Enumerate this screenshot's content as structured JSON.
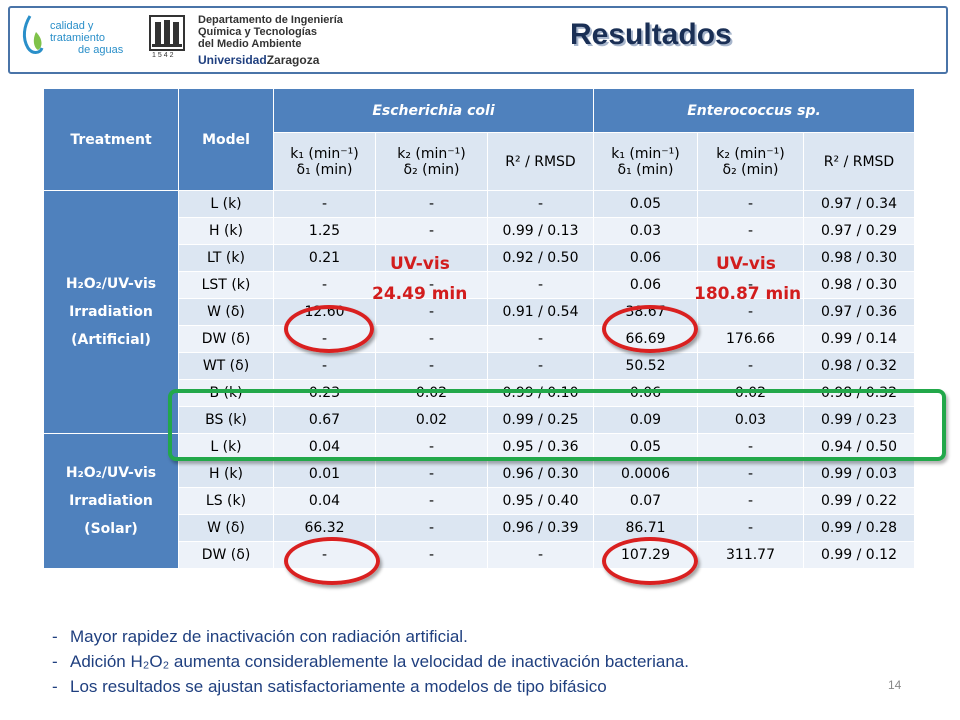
{
  "header": {
    "logo1_line1": "calidad y tratamiento",
    "logo1_line2": "de aguas",
    "dept_line1": "Departamento de Ingeniería",
    "dept_line2": "Química y Tecnologías",
    "dept_line3": "del Medio Ambiente",
    "univ_bold": "Universidad",
    "univ_rest": "Zaragoza",
    "crest_year": "1542",
    "title": "Resultados"
  },
  "table": {
    "h_treatment": "Treatment",
    "h_model": "Model",
    "h_ecoli": "Escherichia coli",
    "h_entero": "Enterococcus sp.",
    "sub": {
      "k1": "k₁ (min⁻¹)",
      "d1": "δ₁ (min)",
      "k2": "k₂ (min⁻¹)",
      "d2": "δ₂ (min)",
      "r2": "R² / RMSD"
    },
    "group_artificial": [
      "H₂O₂/UV-vis",
      "Irradiation",
      "(Artificial)"
    ],
    "group_solar": [
      "H₂O₂/UV-vis",
      "Irradiation",
      "(Solar)"
    ],
    "rows": [
      [
        "L (k)",
        "-",
        "-",
        "-",
        "0.05",
        "-",
        "0.97 / 0.34"
      ],
      [
        "H (k)",
        "1.25",
        "-",
        "0.99 / 0.13",
        "0.03",
        "-",
        "0.97 / 0.29"
      ],
      [
        "LT (k)",
        "0.21",
        "",
        "0.92 / 0.50",
        "0.06",
        "",
        "0.98 / 0.30"
      ],
      [
        "LST (k)",
        "-",
        "-",
        "-",
        "0.06",
        "-",
        "0.98 / 0.30"
      ],
      [
        "W (δ)",
        "12.60",
        "-",
        "0.91 / 0.54",
        "38.67",
        "-",
        "0.97 / 0.36"
      ],
      [
        "DW (δ)",
        "-",
        "-",
        "-",
        "66.69",
        "176.66",
        "0.99 / 0.14"
      ],
      [
        "WT (δ)",
        "-",
        "-",
        "-",
        "50.52",
        "-",
        "0.98 / 0.32"
      ],
      [
        "B (k)",
        "0.23",
        "0.02",
        "0.99 / 0.10",
        "0.06",
        "0.02",
        "0.98 / 0.32"
      ],
      [
        "BS (k)",
        "0.67",
        "0.02",
        "0.99 / 0.25",
        "0.09",
        "0.03",
        "0.99 / 0.23"
      ],
      [
        "L (k)",
        "0.04",
        "-",
        "0.95 / 0.36",
        "0.05",
        "-",
        "0.94 / 0.50"
      ],
      [
        "H (k)",
        "0.01",
        "-",
        "0.96 / 0.30",
        "0.0006",
        "-",
        "0.99 / 0.03"
      ],
      [
        "LS (k)",
        "0.04",
        "-",
        "0.95 / 0.40",
        "0.07",
        "-",
        "0.99 / 0.22"
      ],
      [
        "W (δ)",
        "66.32",
        "-",
        "0.96 / 0.39",
        "86.71",
        "-",
        "0.99 / 0.28"
      ],
      [
        "DW (δ)",
        "-",
        "-",
        "-",
        "107.29",
        "311.77",
        "0.99 / 0.12"
      ]
    ]
  },
  "annotations": {
    "uvvis_left_1": "UV-vis",
    "uvvis_left_2": "24.49 min",
    "uvvis_right_1": "UV-vis",
    "uvvis_right_2": "180.87 min",
    "color_red": "#d21d1d",
    "color_green": "#22a84a"
  },
  "bullets": [
    "Mayor rapidez de inactivación con radiación artificial.",
    "Adición H₂O₂ aumenta considerablemente la velocidad de inactivación bacteriana.",
    "Los resultados se ajustan satisfactoriamente a modelos de tipo bifásico"
  ],
  "bullet_marker": "-",
  "page_number": "14"
}
